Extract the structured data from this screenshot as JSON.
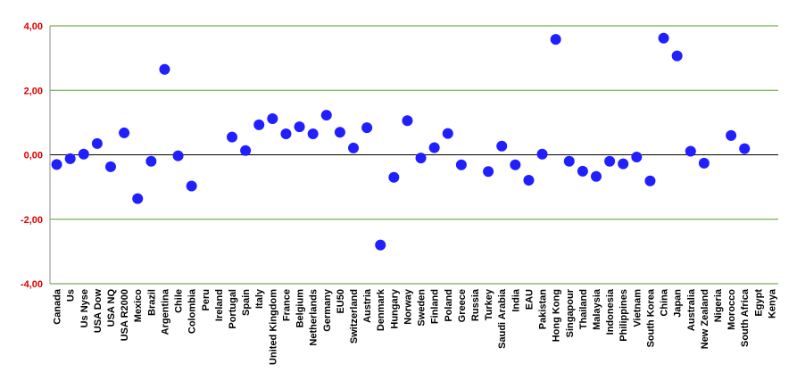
{
  "chart_data": {
    "type": "dot",
    "categories": [
      "Canada",
      "Us",
      "Us Nyse",
      "USA Dow",
      "USA NQ",
      "USA R2000",
      "Mexico",
      "Brazil",
      "Argentina",
      "Chile",
      "Colombia",
      "Peru",
      "Ireland",
      "Portugal",
      "Spain",
      "Italy",
      "United Kingdom",
      "France",
      "Belgium",
      "Netherlands",
      "Germany",
      "EU50",
      "Switzerland",
      "Austria",
      "Denmark",
      "Hungary",
      "Norway",
      "Sweden",
      "Finland",
      "Poland",
      "Greece",
      "Russia",
      "Turkey",
      "Saudi Arabia",
      "India",
      "EAU",
      "Pakistan",
      "Hong Kong",
      "Singapour",
      "Thailand",
      "Malaysia",
      "Indonesia",
      "Philippines",
      "Vietnam",
      "South Korea",
      "China",
      "Japan",
      "Australia",
      "New Zealand",
      "Nigeria",
      "Morocco",
      "South Africa",
      "Egypt",
      "Kenya"
    ],
    "values": [
      -0.3,
      -0.12,
      0.02,
      0.35,
      -0.37,
      0.68,
      -1.36,
      -0.2,
      2.65,
      -0.03,
      -0.97,
      null,
      null,
      0.55,
      0.13,
      0.93,
      1.12,
      0.65,
      0.87,
      0.65,
      1.23,
      0.7,
      0.21,
      0.84,
      -2.8,
      -0.7,
      1.06,
      -0.1,
      0.22,
      0.66,
      -0.31,
      null,
      -0.52,
      0.27,
      -0.31,
      -0.79,
      0.02,
      3.58,
      -0.2,
      -0.51,
      -0.67,
      -0.2,
      -0.28,
      -0.07,
      -0.81,
      3.62,
      3.07,
      0.11,
      -0.26,
      null,
      0.6,
      0.19,
      null,
      null
    ],
    "color": "#1f1fff",
    "ylim": [
      -4,
      4
    ],
    "yticks": [
      {
        "value": -4,
        "label": "-4,00"
      },
      {
        "value": -2,
        "label": "-2,00"
      },
      {
        "value": 0,
        "label": "0,00"
      },
      {
        "value": 2,
        "label": "2,00"
      },
      {
        "value": 4,
        "label": "4,00"
      }
    ],
    "ytick_colors": [
      "#e00000",
      "#e00000",
      "#e00000",
      "#e00000",
      "#e00000"
    ],
    "grid": true,
    "grid_color": "#5a9a2a",
    "zero_line_color": "#000000"
  }
}
